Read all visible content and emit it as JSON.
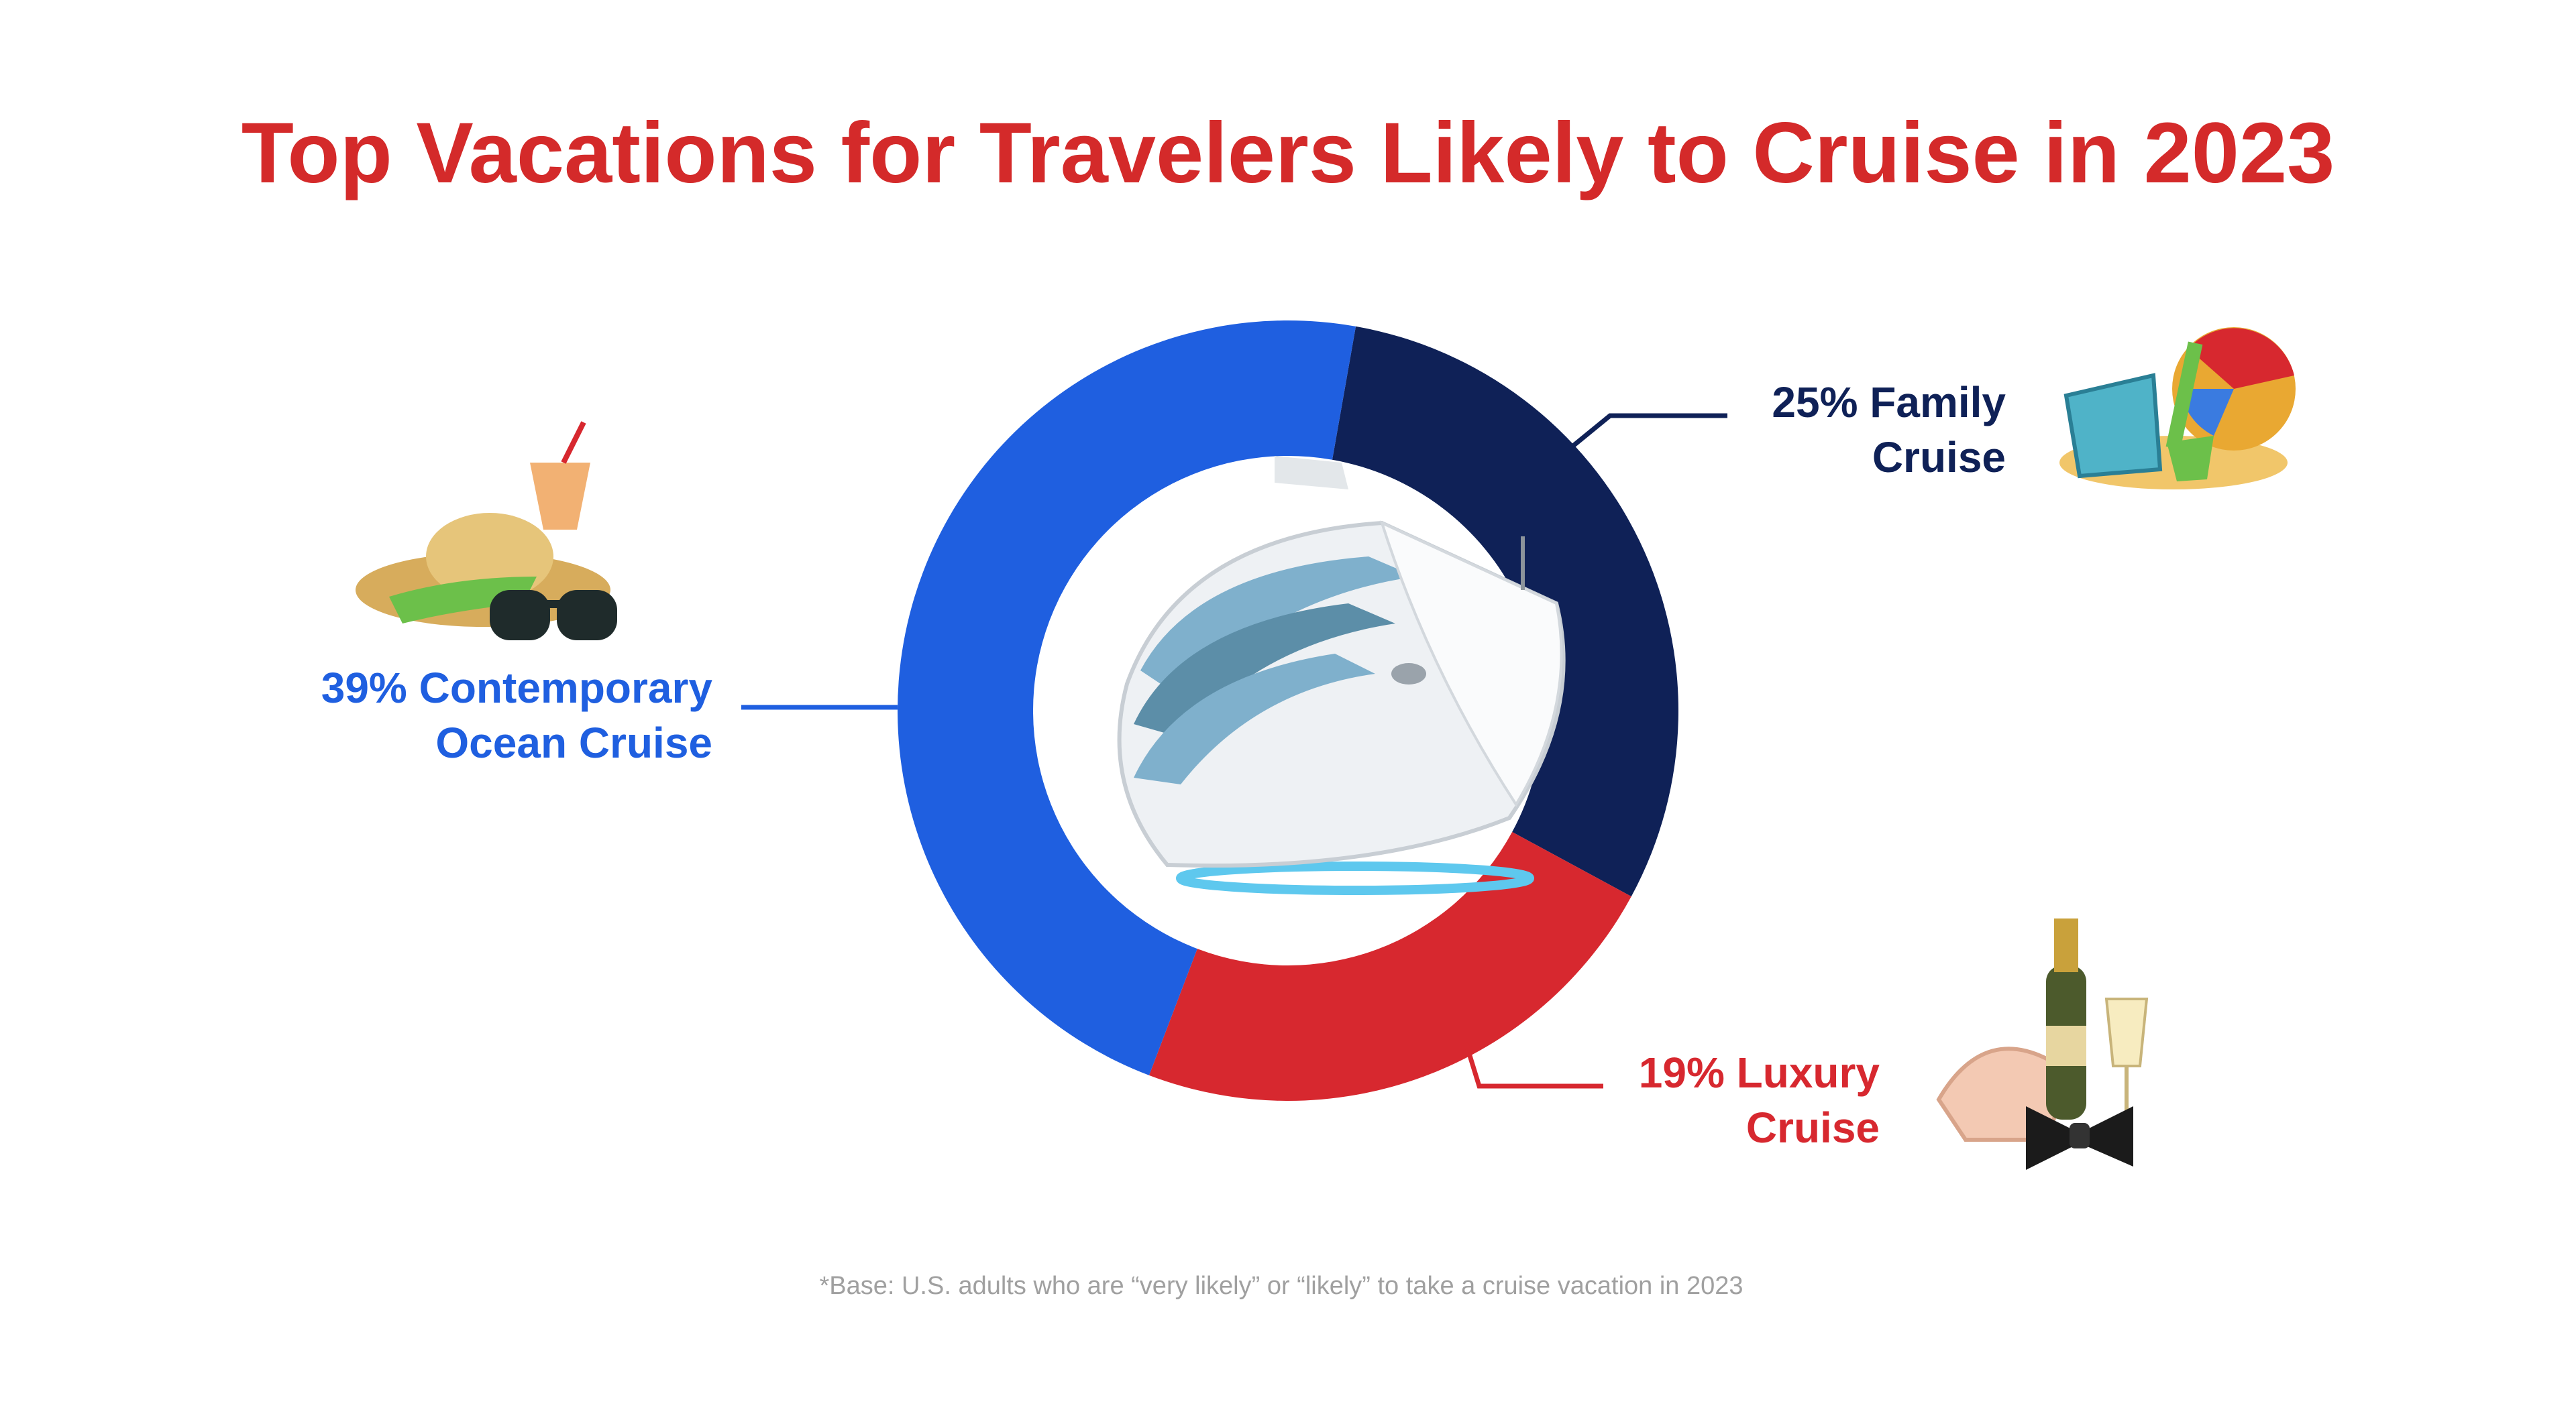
{
  "colors": {
    "title": "#d42a2a",
    "contemporary": "#1f5fe0",
    "family": "#0f2157",
    "luxury": "#d7282f",
    "footnote": "#a0a0a0",
    "background": "#ffffff"
  },
  "chart_data": {
    "type": "pie",
    "title": "Top Vacations for Travelers Likely to Cruise in 2023",
    "footnote": "*Base: U.S. adults who are “very likely” or “likely” to take a cruise vacation in 2023",
    "slices": [
      {
        "pct_label": "25%",
        "value": 25,
        "label_lines": [
          "Family",
          "Cruise"
        ],
        "color_key": "family"
      },
      {
        "pct_label": "19%",
        "value": 19,
        "label_lines": [
          "Luxury",
          "Cruise"
        ],
        "color_key": "luxury"
      },
      {
        "pct_label": "39%",
        "value": 39,
        "label_lines": [
          "Contemporary",
          "Ocean Cruise"
        ],
        "color_key": "contemporary"
      }
    ],
    "label_text": [
      {
        "line1": "25% Family",
        "line2": "Cruise"
      },
      {
        "line1": "19% Luxury",
        "line2": "Cruise"
      },
      {
        "line1": "39% Contemporary",
        "line2": "Ocean Cruise"
      }
    ],
    "icons": [
      "cruise-ship-icon",
      "beach-toys-icon",
      "champagne-bowtie-icon",
      "beach-hat-sunglasses-icon"
    ]
  }
}
